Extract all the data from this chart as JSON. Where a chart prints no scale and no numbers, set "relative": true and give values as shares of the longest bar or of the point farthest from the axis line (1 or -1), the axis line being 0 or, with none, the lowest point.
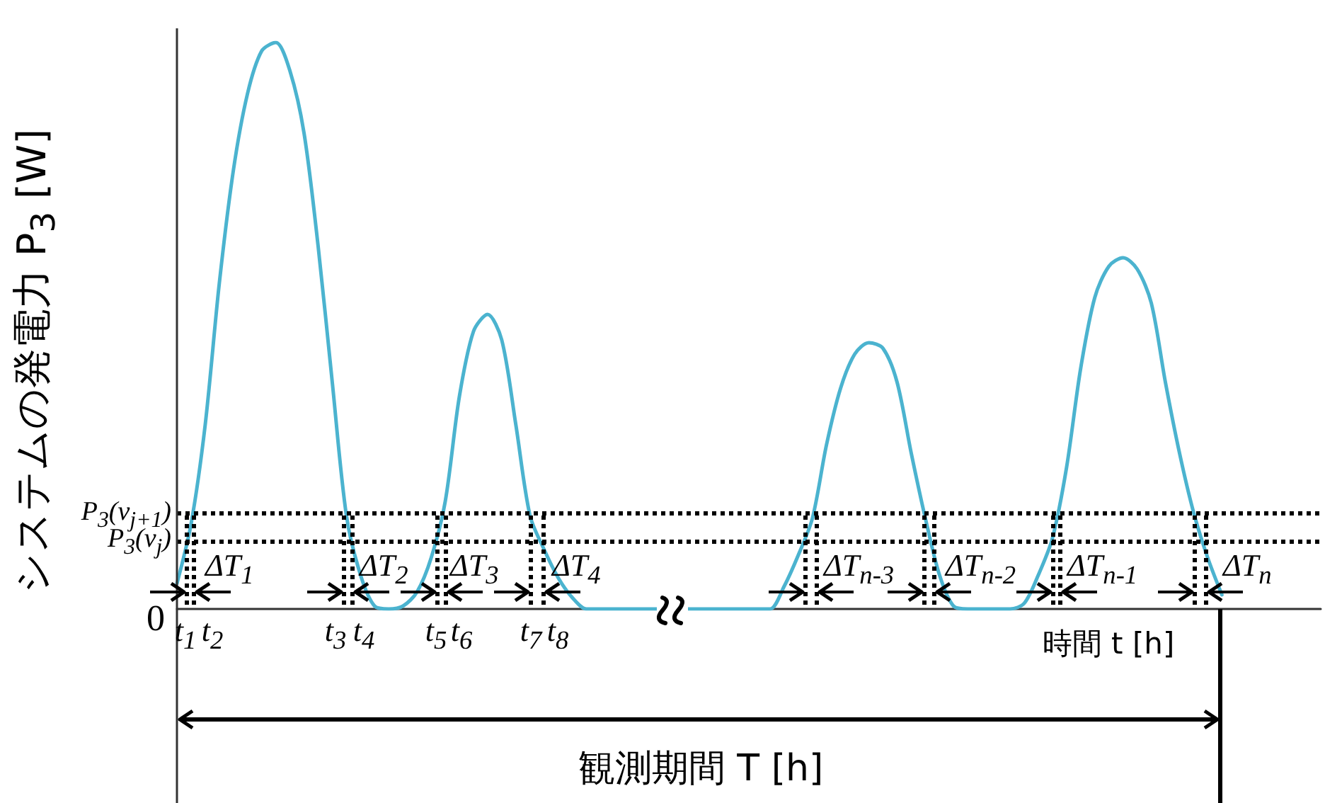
{
  "chart_data": {
    "type": "line",
    "relative": true,
    "ylabel": "システムの発電力 P$_{3}$ [W]",
    "xlabel": "時間 t [h]",
    "categories": [
      null,
      null,
      null,
      null,
      null,
      null,
      null,
      null,
      null,
      null,
      null,
      null,
      null,
      null,
      null,
      null,
      null,
      null,
      null,
      null,
      null,
      null,
      null,
      null,
      null,
      null,
      null,
      null,
      null,
      null,
      null,
      null,
      null,
      null,
      null,
      null,
      null,
      null,
      null,
      null,
      null,
      null,
      null,
      null,
      null,
      null,
      null,
      null,
      null,
      null,
      null,
      null,
      null,
      null,
      null,
      null,
      null,
      null,
      null,
      null,
      null,
      null,
      null,
      null,
      null,
      null,
      null,
      null,
      null,
      null,
      null,
      null,
      null,
      null,
      null,
      null,
      null,
      null,
      null,
      null,
      null,
      null
    ],
    "series": [
      {
        "color": "#4bb3cf",
        "values": [
          0.045,
          0.15,
          0.325,
          0.575,
          0.775,
          0.91,
          0.985,
          1,
          0.95,
          0.84,
          0.64,
          0.4,
          0.165,
          0.06,
          0.005,
          0,
          0.005,
          0.03,
          0.09,
          0.19,
          0.375,
          0.49,
          0.52,
          0.475,
          0.325,
          0.165,
          0.105,
          0.055,
          0.02,
          0,
          0,
          0,
          0,
          0,
          0,
          0,
          0,
          0,
          0,
          0,
          0,
          0,
          0,
          0.04,
          0.095,
          0.16,
          0.29,
          0.39,
          0.45,
          0.47,
          0.46,
          0.4,
          0.275,
          0.16,
          0.06,
          0.005,
          0,
          0,
          0,
          0,
          0.01,
          0.06,
          0.125,
          0.25,
          0.425,
          0.55,
          0.605,
          0.62,
          0.6,
          0.54,
          0.4,
          0.275,
          0.17,
          0.09,
          0.025,
          null,
          null,
          null,
          null,
          null,
          null,
          null
        ]
      }
    ],
    "ref_lines": [
      {
        "axis": "y",
        "value": 0.165,
        "label": "P$_{3}$(v$_{j+1}$)",
        "color": "#000000",
        "line_style": "dotted"
      },
      {
        "axis": "y",
        "value": 0.118,
        "label": "P$_{3}$(v$_{j}$)",
        "color": "#000000",
        "line_style": "dotted"
      }
    ],
    "annotations": [
      "0",
      "t$_{1}$",
      "t$_{2}$",
      "t$_{3}$",
      "t$_{4}$",
      "t$_{5}$",
      "t$_{6}$",
      "t$_{7}$",
      "t$_{8}$",
      "ΔT$_{1}$",
      "ΔT$_{2}$",
      "ΔT$_{3}$",
      "ΔT$_{4}$",
      "ΔT$_{n-3}$",
      "ΔT$_{n-2}$",
      "ΔT$_{n-1}$",
      "ΔT$_{n}$",
      "観測期間 T [h]"
    ],
    "grid": false,
    "marker": "none",
    "line_style": "solid"
  }
}
